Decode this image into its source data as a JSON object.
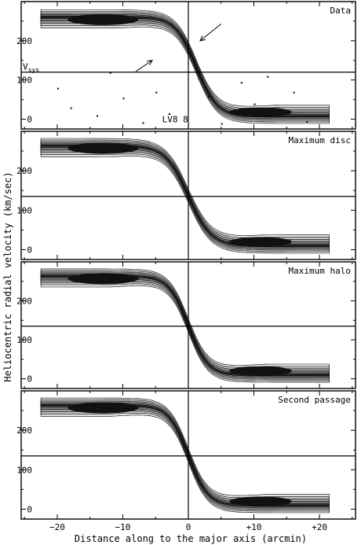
{
  "figure": {
    "xlabel": "Distance along to the major axis (arcmin)",
    "ylabel": "Heliocentric radial velocity (km/sec)"
  },
  "chart_data": [
    {
      "type": "heatmap",
      "title": "Data",
      "x_ticks": [
        "−20",
        "−10",
        "0",
        "+10",
        "+20"
      ],
      "x_tick_values": [
        -20,
        -10,
        0,
        10,
        20
      ],
      "y_ticks": [
        "0",
        "100",
        "200"
      ],
      "y_tick_values": [
        0,
        100,
        200
      ],
      "ylim": [
        -25,
        300
      ],
      "xlim": [
        -25.5,
        25.5
      ],
      "vsys_label": "V",
      "vsys_subscript": "sys",
      "vsys": 120,
      "extra_label": "LV8 8",
      "curve": {
        "vmax": 262,
        "vmin": 6,
        "center": 1.2,
        "scale": 3.2
      },
      "arrows": [
        {
          "tip_x": 1.8,
          "tip_y": 200,
          "tail_x": 5.0,
          "tail_y": 243
        },
        {
          "tip_x": -5.5,
          "tip_y": 150,
          "tail_x": -8.0,
          "tail_y": 122
        }
      ]
    },
    {
      "type": "heatmap",
      "title": "Maximum disc",
      "x_ticks": [
        "−20",
        "−10",
        "0",
        "+10",
        "+20"
      ],
      "x_tick_values": [
        -20,
        -10,
        0,
        10,
        20
      ],
      "y_ticks": [
        "0",
        "100",
        "200"
      ],
      "y_tick_values": [
        0,
        100,
        200
      ],
      "ylim": [
        -25,
        300
      ],
      "xlim": [
        -25.5,
        25.5
      ],
      "vsys": 135,
      "curve": {
        "vmax": 265,
        "vmin": 8,
        "center": 0,
        "scale": 3.5
      }
    },
    {
      "type": "heatmap",
      "title": "Maximum halo",
      "x_ticks": [
        "−20",
        "−10",
        "0",
        "+10",
        "+20"
      ],
      "x_tick_values": [
        -20,
        -10,
        0,
        10,
        20
      ],
      "y_ticks": [
        "0",
        "100",
        "200"
      ],
      "y_tick_values": [
        0,
        100,
        200
      ],
      "ylim": [
        -25,
        300
      ],
      "xlim": [
        -25.5,
        25.5
      ],
      "vsys": 135,
      "curve": {
        "vmax": 265,
        "vmin": 8,
        "center": 0,
        "scale": 3.0
      }
    },
    {
      "type": "heatmap",
      "title": "Second passage",
      "x_ticks": [
        "−20",
        "−10",
        "0",
        "+10",
        "+20"
      ],
      "x_tick_values": [
        -20,
        -10,
        0,
        10,
        20
      ],
      "y_ticks": [
        "0",
        "100",
        "200"
      ],
      "y_tick_values": [
        0,
        100,
        200
      ],
      "ylim": [
        -25,
        300
      ],
      "xlim": [
        -25.5,
        25.5
      ],
      "vsys": 135,
      "curve": {
        "vmax": 265,
        "vmin": 8,
        "center": 0,
        "scale": 3.0
      }
    }
  ]
}
